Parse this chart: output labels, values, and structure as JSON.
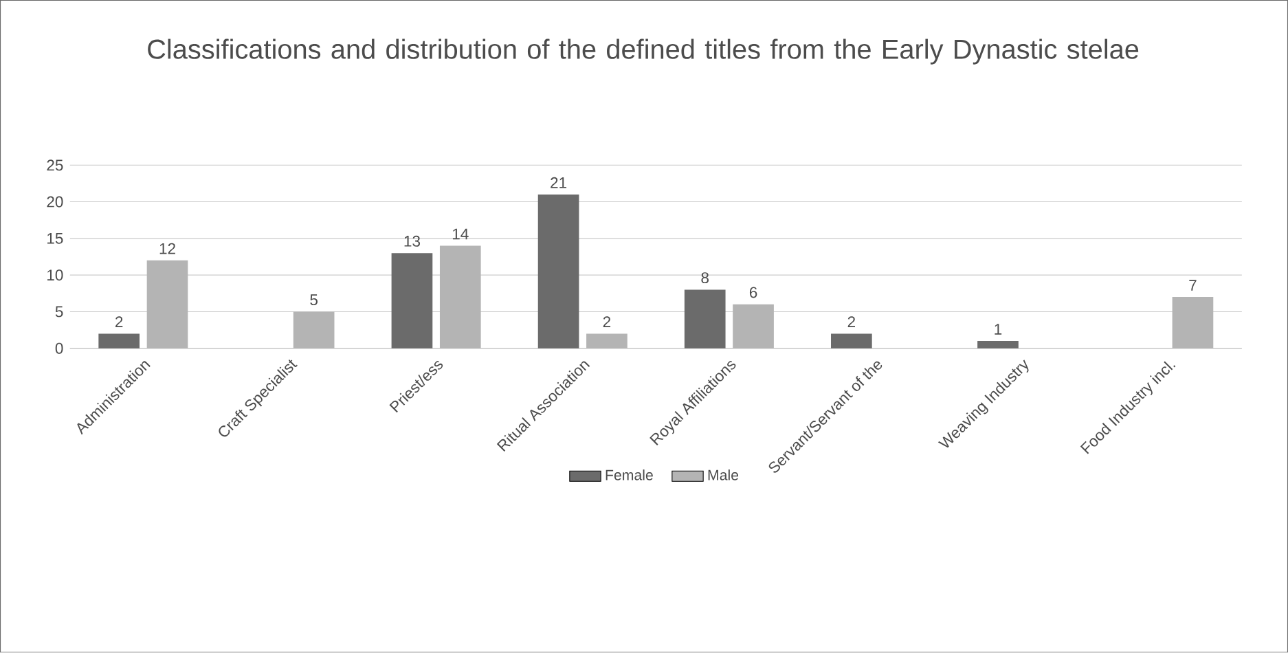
{
  "chart_data": {
    "type": "bar",
    "title": "Classifications and distribution of the defined titles from the Early Dynastic stelae",
    "categories": [
      "Administration",
      "Craft Specialist",
      "Priest/ess",
      "Ritual Association",
      "Royal Affiliations",
      "Servant/Servant of the",
      "Weaving Industry",
      "Food Industry incl."
    ],
    "series": [
      {
        "name": "Female",
        "color": "#6b6b6b",
        "values": [
          2,
          null,
          13,
          21,
          8,
          2,
          1,
          null
        ]
      },
      {
        "name": "Male",
        "color": "#b4b4b4",
        "values": [
          12,
          5,
          14,
          2,
          6,
          null,
          null,
          7
        ]
      }
    ],
    "ylim": [
      0,
      25
    ],
    "yticks": [
      0,
      5,
      10,
      15,
      20,
      25
    ],
    "grid": "y",
    "legend": "bottom",
    "data_labels": true
  }
}
